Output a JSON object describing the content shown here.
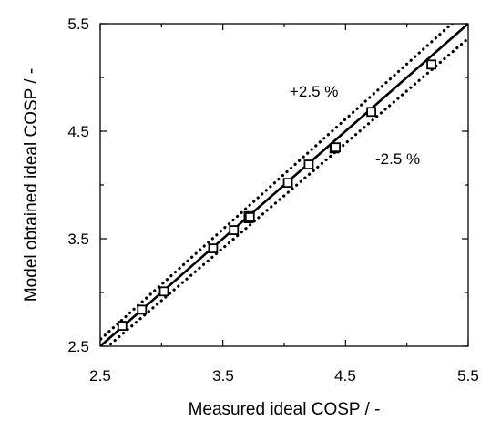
{
  "chart_data": {
    "type": "scatter",
    "xlabel": "Measured ideal COSP / -",
    "ylabel": "Model obtained ideal COSP / -",
    "xlim": [
      2.5,
      5.5
    ],
    "ylim": [
      2.5,
      5.5
    ],
    "x_ticks": [
      "2.5",
      "3.5",
      "4.5",
      "5.5"
    ],
    "y_ticks": [
      "2.5",
      "3.5",
      "4.5",
      "5.5"
    ],
    "grid": false,
    "series": [
      {
        "marker": "square",
        "x": [
          2.68,
          2.84,
          3.02,
          3.42,
          3.59,
          3.71,
          3.71,
          3.72,
          4.03,
          4.2,
          4.41,
          4.42,
          4.71,
          5.2
        ],
        "y": [
          2.69,
          2.84,
          3.01,
          3.41,
          3.58,
          3.69,
          3.71,
          3.7,
          4.02,
          4.19,
          4.34,
          4.35,
          4.68,
          5.12
        ]
      }
    ],
    "reference_lines": [
      {
        "style": "solid",
        "slope": 1.0
      },
      {
        "style": "dotted",
        "slope": 1.025
      },
      {
        "style": "dotted",
        "slope": 0.975
      }
    ],
    "annotations": [
      "+2.5 %",
      "-2.5 %"
    ]
  }
}
